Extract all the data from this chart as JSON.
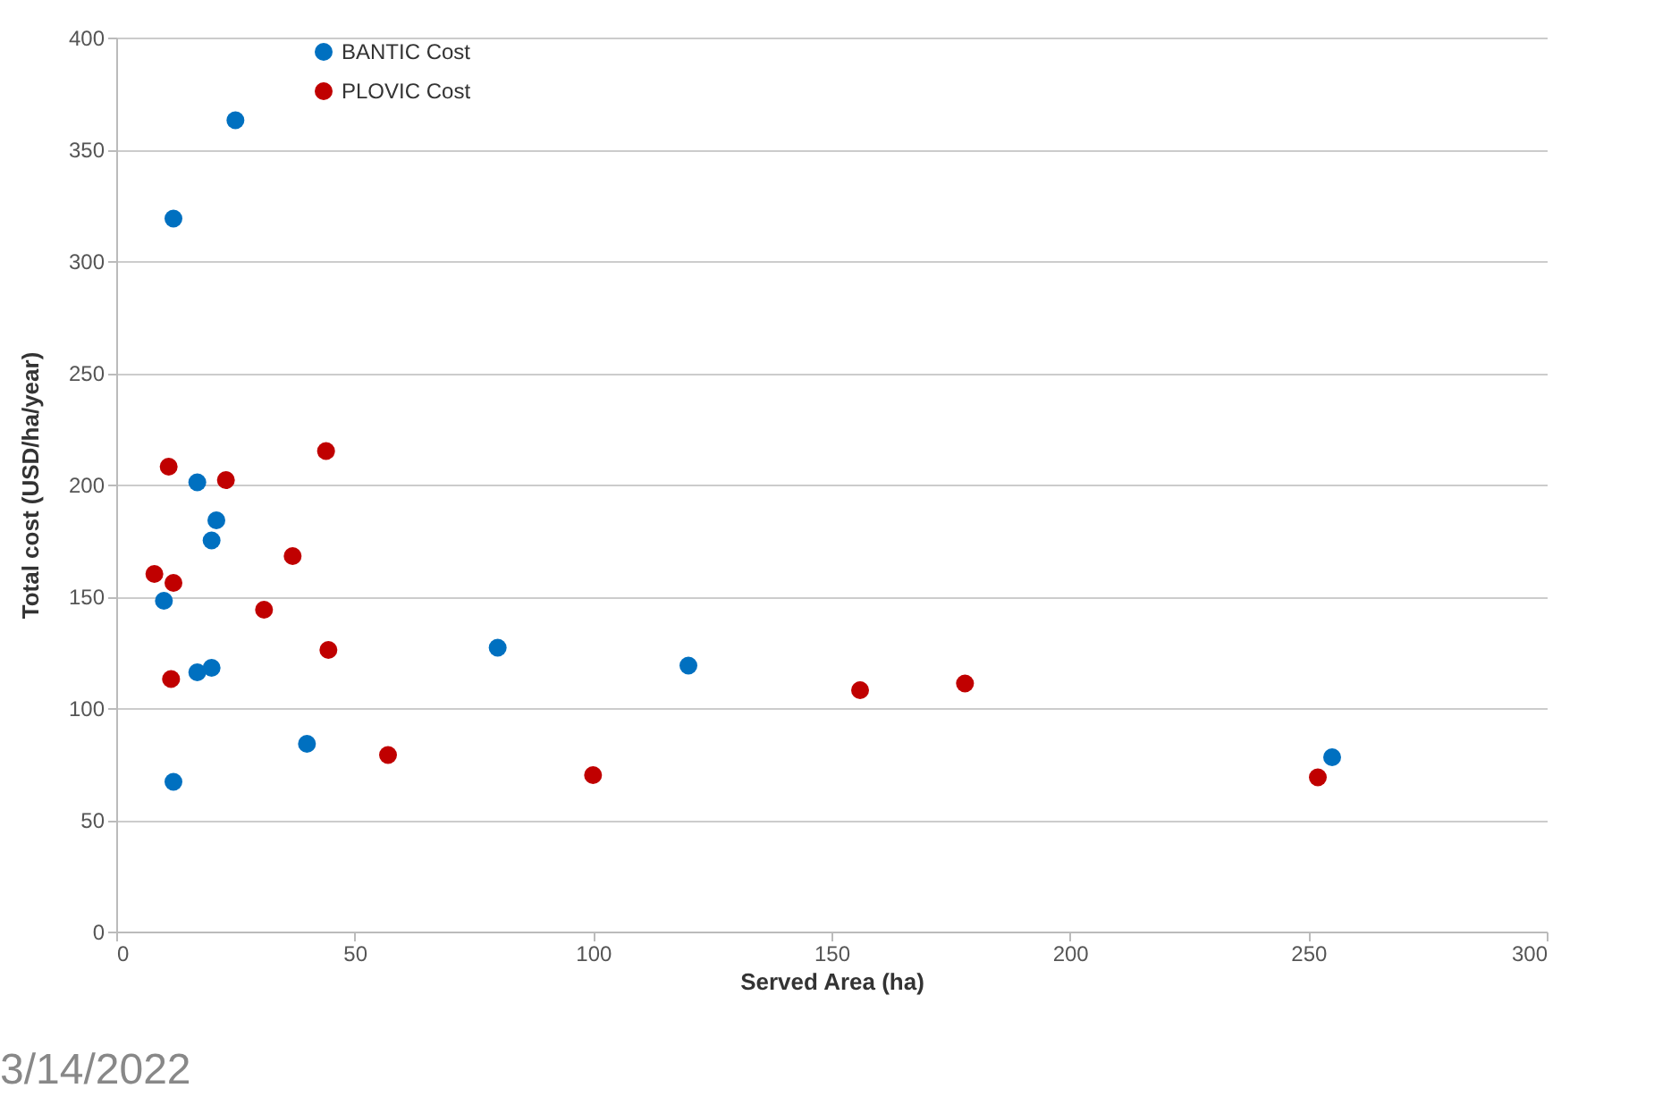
{
  "chart_data": {
    "type": "scatter",
    "xlabel": "Served Area (ha)",
    "ylabel": "Total cost (USD/ha/year)",
    "xlim": [
      0,
      300
    ],
    "xticks": [
      0,
      50,
      100,
      150,
      200,
      250,
      300
    ],
    "ylim": [
      0,
      400
    ],
    "yticks": [
      0,
      50,
      100,
      150,
      200,
      250,
      300,
      350,
      400
    ],
    "grid": "y",
    "legend": "top left",
    "marker": "circle",
    "annotations": [
      "3/14/2022"
    ],
    "series": [
      {
        "name": "BANTIC Cost",
        "color": "#0070c0",
        "x": [
          12,
          25,
          17,
          21,
          20,
          10,
          17,
          20,
          12,
          40,
          80,
          120,
          255
        ],
        "values": [
          319,
          363,
          201,
          184,
          175,
          148,
          116,
          118,
          67,
          84,
          127,
          119,
          78
        ]
      },
      {
        "name": "PLOVIC Cost",
        "color": "#c00000",
        "x": [
          8,
          11,
          12,
          11.5,
          23,
          37,
          31,
          44,
          44.5,
          57,
          100,
          156,
          178,
          252
        ],
        "values": [
          160,
          208,
          156,
          113,
          202,
          168,
          144,
          215,
          126,
          79,
          70,
          108,
          111,
          69
        ]
      }
    ]
  }
}
